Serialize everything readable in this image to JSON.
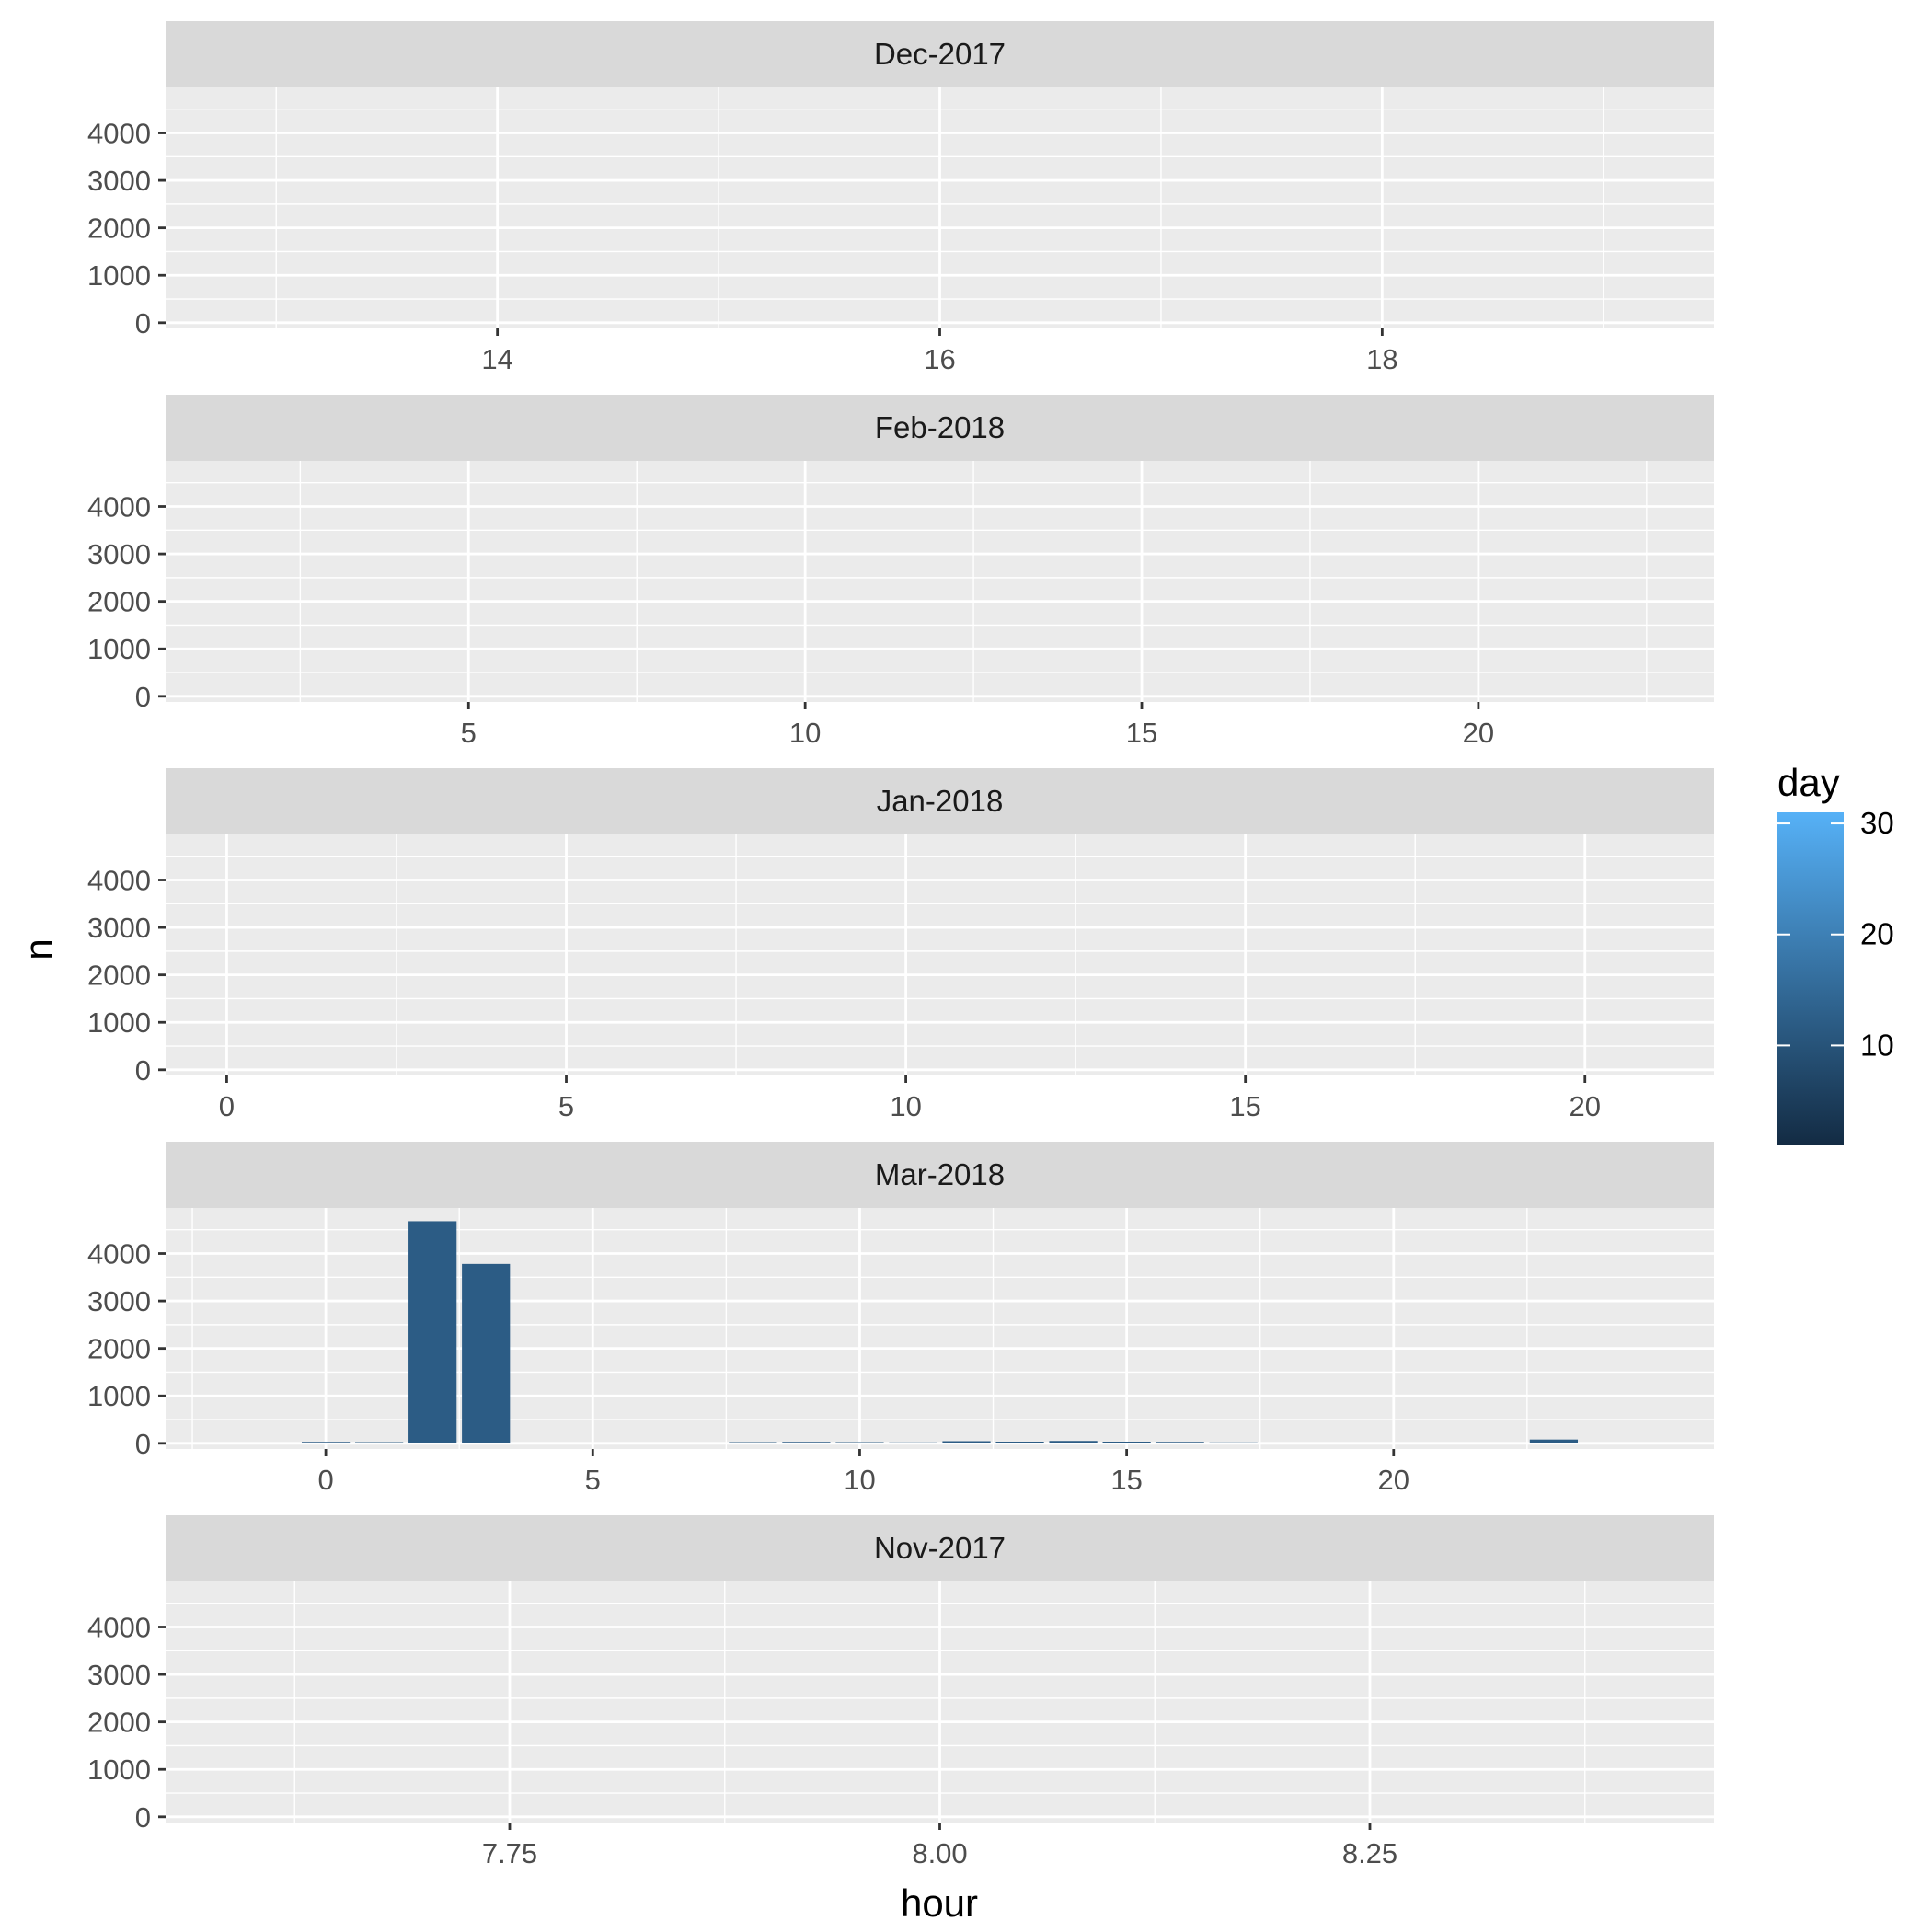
{
  "chart_data": {
    "type": "bar",
    "xlabel": "hour",
    "ylabel": "n",
    "y_ticks": [
      "0",
      "1000",
      "2000",
      "3000",
      "4000"
    ],
    "ylim": [
      -120,
      4960
    ],
    "grid": true,
    "legend": {
      "title": "day",
      "position": "right",
      "type": "colorbar",
      "ticks": [
        "10",
        "20",
        "30"
      ],
      "tick_values": [
        10,
        20,
        30
      ],
      "range": [
        1,
        31
      ],
      "low_color": "#132B43",
      "high_color": "#56B1F7"
    },
    "panels": [
      {
        "label": "Dec-2017",
        "xlim": [
          12.5,
          19.5
        ],
        "x_ticks": [
          {
            "value": 14,
            "label": "14"
          },
          {
            "value": 16,
            "label": "16"
          },
          {
            "value": 18,
            "label": "18"
          }
        ],
        "minor_x": [
          13,
          15,
          17,
          19
        ],
        "bars": []
      },
      {
        "label": "Feb-2018",
        "xlim": [
          0.5,
          23.5
        ],
        "x_ticks": [
          {
            "value": 5,
            "label": "5"
          },
          {
            "value": 10,
            "label": "10"
          },
          {
            "value": 15,
            "label": "15"
          },
          {
            "value": 20,
            "label": "20"
          }
        ],
        "minor_x": [
          2.5,
          7.5,
          12.5,
          17.5,
          22.5
        ],
        "bars": []
      },
      {
        "label": "Jan-2018",
        "xlim": [
          -0.9,
          21.9
        ],
        "x_ticks": [
          {
            "value": 0,
            "label": "0"
          },
          {
            "value": 5,
            "label": "5"
          },
          {
            "value": 10,
            "label": "10"
          },
          {
            "value": 15,
            "label": "15"
          },
          {
            "value": 20,
            "label": "20"
          }
        ],
        "minor_x": [
          2.5,
          7.5,
          12.5,
          17.5
        ],
        "bars": []
      },
      {
        "label": "Mar-2018",
        "xlim": [
          -3,
          26
        ],
        "x_ticks": [
          {
            "value": 0,
            "label": "0"
          },
          {
            "value": 5,
            "label": "5"
          },
          {
            "value": 10,
            "label": "10"
          },
          {
            "value": 15,
            "label": "15"
          },
          {
            "value": 20,
            "label": "20"
          }
        ],
        "minor_x": [
          -2.5,
          2.5,
          7.5,
          12.5,
          17.5,
          22.5
        ],
        "bars": [
          {
            "x": 0,
            "n": 30,
            "day": 12
          },
          {
            "x": 1,
            "n": 25,
            "day": 12
          },
          {
            "x": 2,
            "n": 4680,
            "day": 12
          },
          {
            "x": 3,
            "n": 3780,
            "day": 12
          },
          {
            "x": 4,
            "n": 10,
            "day": 12
          },
          {
            "x": 5,
            "n": 10,
            "day": 12
          },
          {
            "x": 6,
            "n": 10,
            "day": 12
          },
          {
            "x": 7,
            "n": 15,
            "day": 12
          },
          {
            "x": 8,
            "n": 25,
            "day": 12
          },
          {
            "x": 9,
            "n": 30,
            "day": 12
          },
          {
            "x": 10,
            "n": 25,
            "day": 12
          },
          {
            "x": 11,
            "n": 20,
            "day": 12
          },
          {
            "x": 12,
            "n": 45,
            "day": 12
          },
          {
            "x": 13,
            "n": 35,
            "day": 12
          },
          {
            "x": 14,
            "n": 50,
            "day": 12
          },
          {
            "x": 15,
            "n": 35,
            "day": 12
          },
          {
            "x": 16,
            "n": 30,
            "day": 12
          },
          {
            "x": 17,
            "n": 20,
            "day": 12
          },
          {
            "x": 18,
            "n": 15,
            "day": 12
          },
          {
            "x": 19,
            "n": 15,
            "day": 12
          },
          {
            "x": 20,
            "n": 15,
            "day": 12
          },
          {
            "x": 21,
            "n": 15,
            "day": 12
          },
          {
            "x": 22,
            "n": 15,
            "day": 12
          },
          {
            "x": 23,
            "n": 80,
            "day": 12
          }
        ]
      },
      {
        "label": "Nov-2017",
        "xlim": [
          7.55,
          8.45
        ],
        "x_ticks": [
          {
            "value": 7.75,
            "label": "7.75"
          },
          {
            "value": 8.0,
            "label": "8.00"
          },
          {
            "value": 8.25,
            "label": "8.25"
          }
        ],
        "minor_x": [
          7.625,
          7.875,
          8.125,
          8.375
        ],
        "bars": []
      }
    ]
  }
}
